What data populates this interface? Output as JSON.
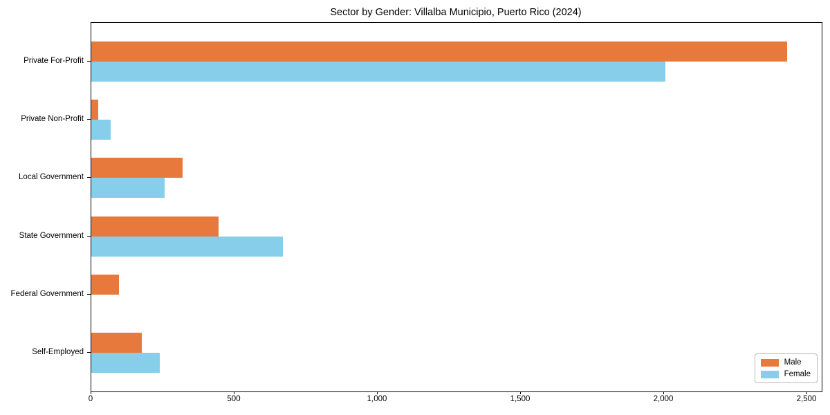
{
  "chart_data": {
    "type": "bar",
    "orientation": "horizontal",
    "title": "Sector by Gender: Villalba Municipio, Puerto Rico (2024)",
    "categories": [
      "Private For-Profit",
      "Private Non-Profit",
      "Local Government",
      "State Government",
      "Federal Government",
      "Self-Employed"
    ],
    "series": [
      {
        "name": "Male",
        "color": "#e8793d",
        "values": [
          2430,
          24,
          319,
          445,
          96,
          176
        ]
      },
      {
        "name": "Female",
        "color": "#87ceeb",
        "values": [
          2004,
          68,
          256,
          669,
          0,
          238
        ]
      }
    ],
    "xlabel": "",
    "ylabel": "",
    "xlim": [
      0,
      2550
    ],
    "x_tick_values": [
      0,
      500,
      1000,
      1500,
      2000,
      2500
    ],
    "x_tick_labels": [
      "0",
      "500",
      "1,000",
      "1,500",
      "2,000",
      "2,500"
    ],
    "grid": false,
    "legend": {
      "position": "lower right",
      "entries": [
        "Male",
        "Female"
      ]
    }
  }
}
